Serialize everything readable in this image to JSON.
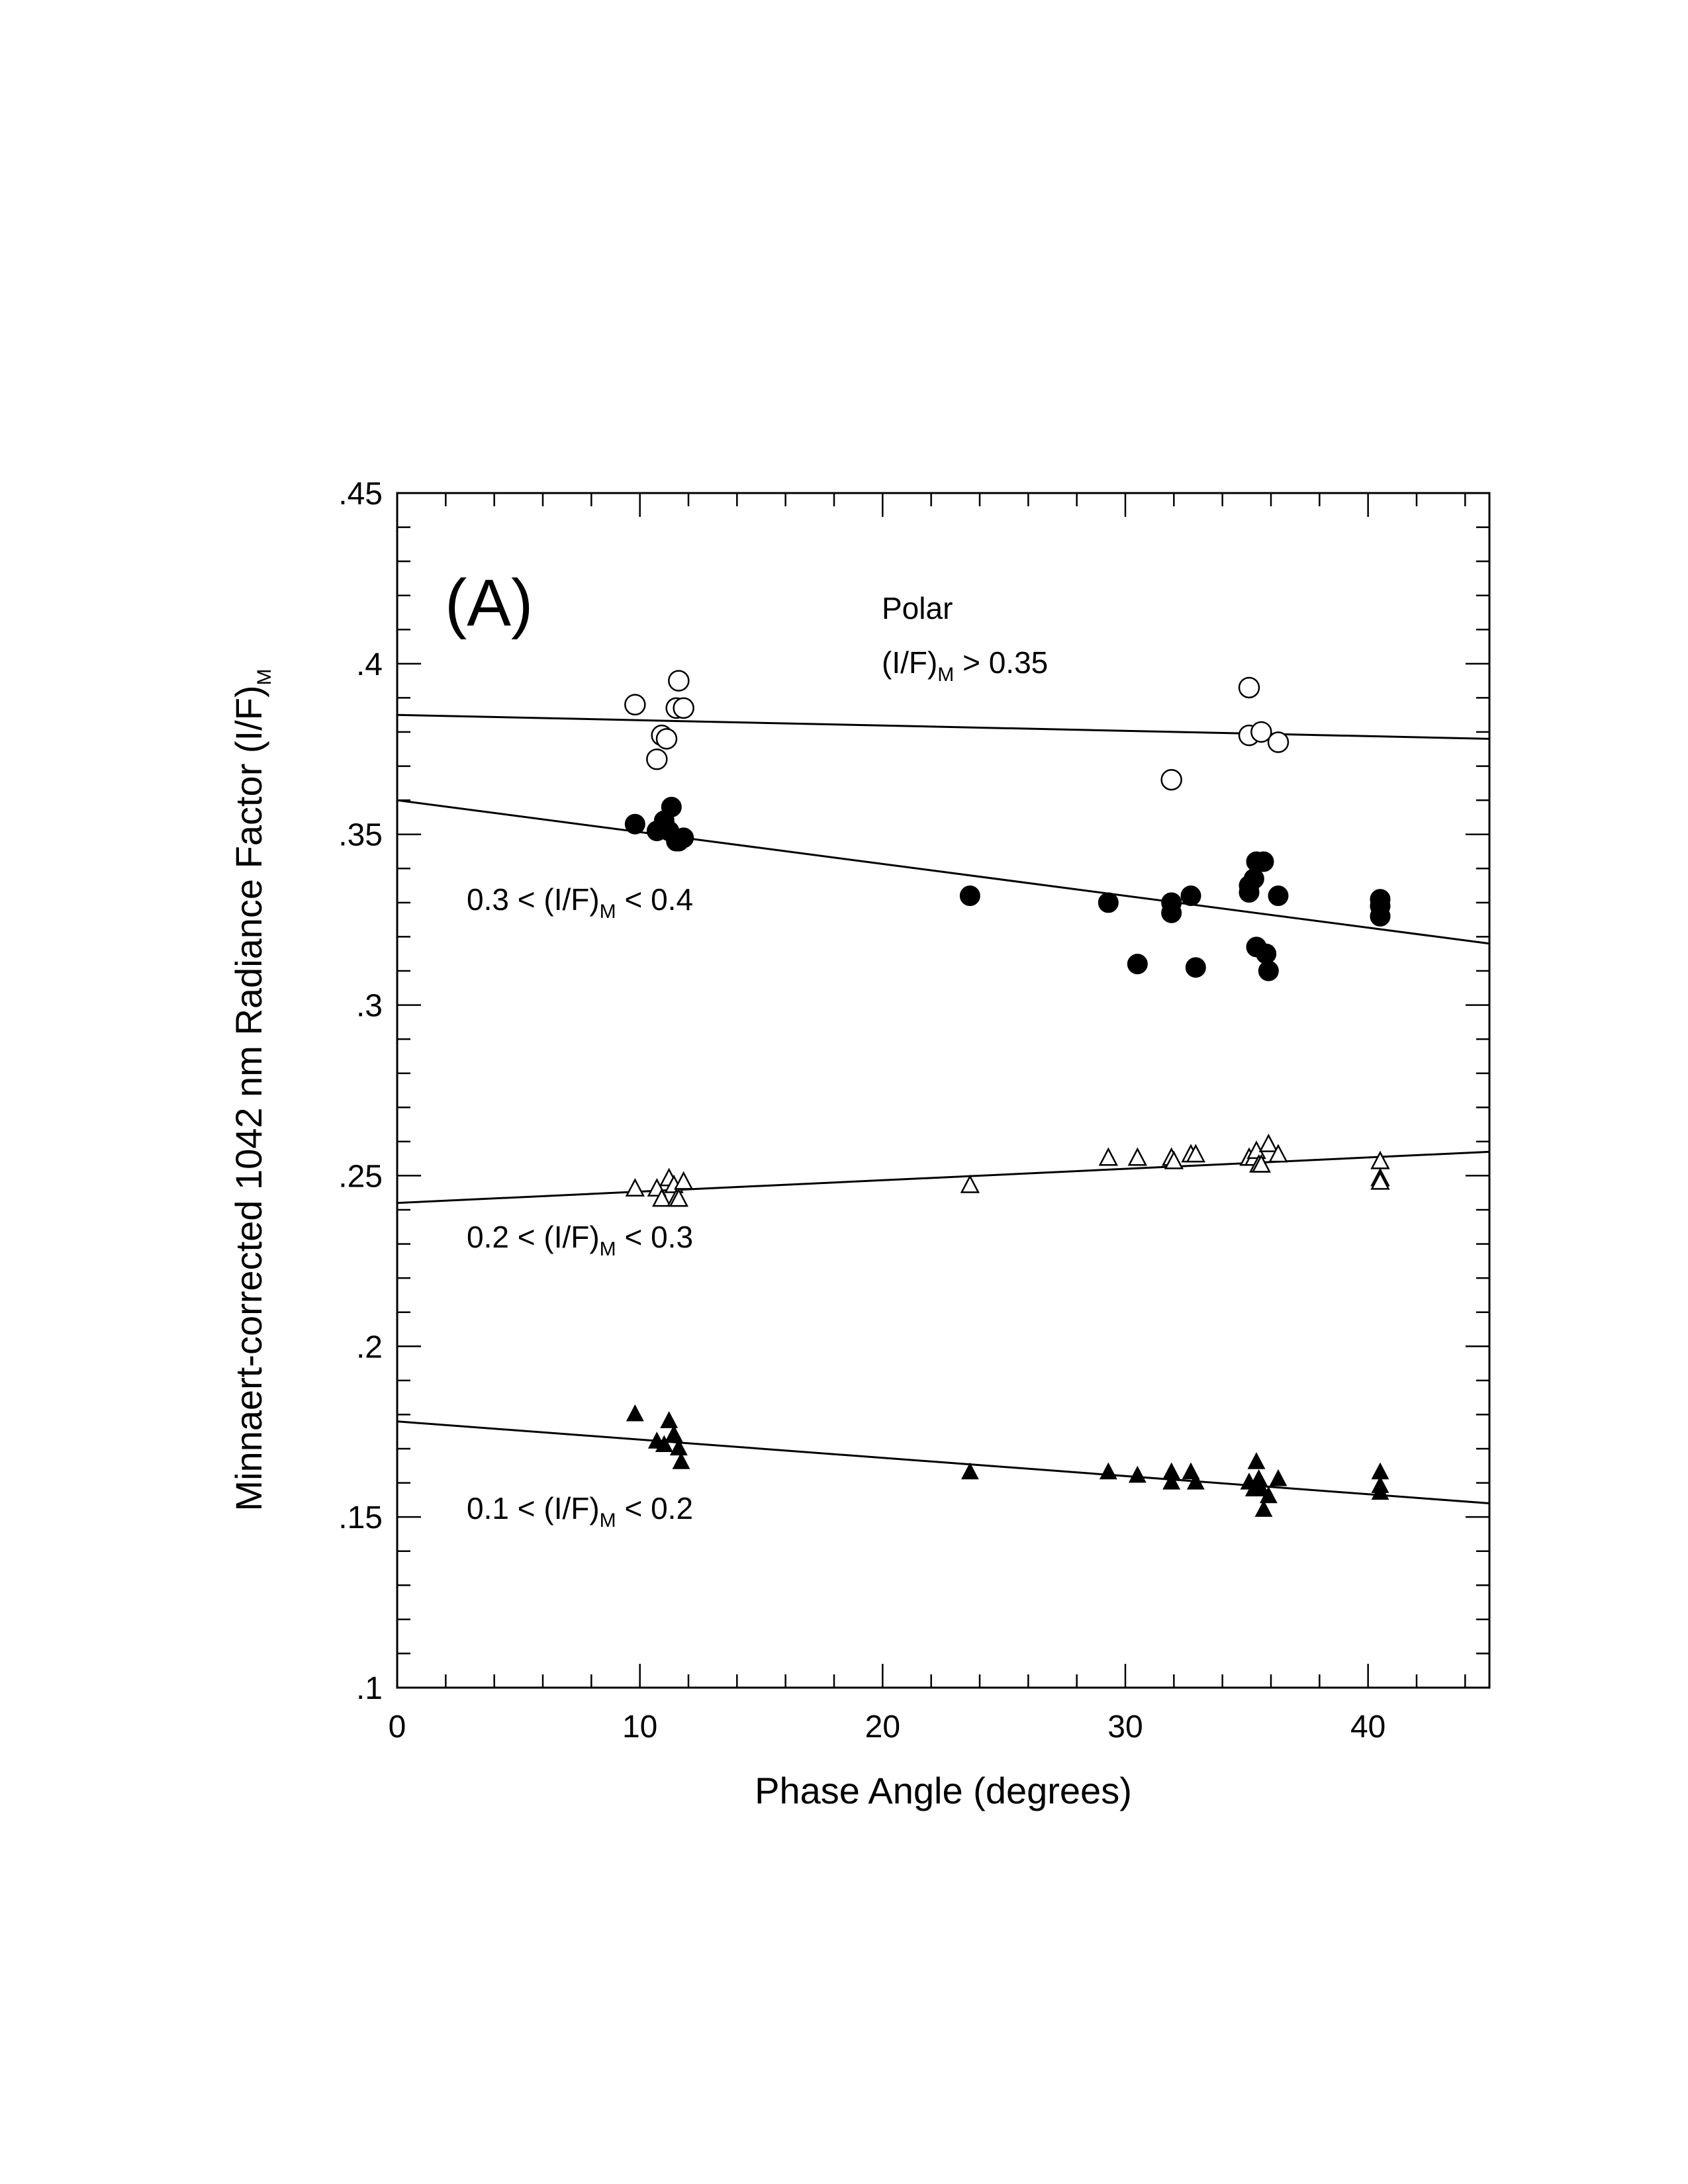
{
  "chart_data": {
    "type": "scatter",
    "panel_label": "(A)",
    "xlabel": "Phase Angle (degrees)",
    "ylabel": {
      "main": "Minnaert-corrected 1042 nm Radiance Factor (I/F)",
      "sub": "M"
    },
    "xlim": [
      0,
      45
    ],
    "ylim": [
      0.1,
      0.45
    ],
    "x_ticks": [
      0,
      10,
      20,
      30,
      40
    ],
    "x_tick_labels": [
      "0",
      "10",
      "20",
      "30",
      "40"
    ],
    "y_ticks": [
      0.1,
      0.15,
      0.2,
      0.25,
      0.3,
      0.35,
      0.4,
      0.45
    ],
    "y_tick_labels": [
      ".1",
      ".15",
      ".2",
      ".25",
      ".3",
      ".35",
      ".4",
      ".45"
    ],
    "grid": false,
    "annotations": [
      {
        "id": "polar",
        "lines": [
          {
            "segments": [
              {
                "text": "Polar"
              }
            ]
          },
          {
            "segments": [
              {
                "text": "(I/F)"
              },
              {
                "text": "M",
                "sub": true
              },
              {
                "text": " > 0.35"
              }
            ]
          }
        ]
      },
      {
        "id": "high",
        "lines": [
          {
            "segments": [
              {
                "text": "0.3 < (I/F)"
              },
              {
                "text": "M",
                "sub": true
              },
              {
                "text": " < 0.4"
              }
            ]
          }
        ]
      },
      {
        "id": "mid",
        "lines": [
          {
            "segments": [
              {
                "text": "0.2 < (I/F)"
              },
              {
                "text": "M",
                "sub": true
              },
              {
                "text": " < 0.3"
              }
            ]
          }
        ]
      },
      {
        "id": "low",
        "lines": [
          {
            "segments": [
              {
                "text": "0.1 < (I/F)"
              },
              {
                "text": "M",
                "sub": true
              },
              {
                "text": " < 0.2"
              }
            ]
          }
        ]
      }
    ],
    "series": [
      {
        "marker": "open-circle",
        "fit": [
          [
            0,
            0.385
          ],
          [
            45,
            0.378
          ]
        ],
        "points": [
          [
            9.8,
            0.388
          ],
          [
            11.6,
            0.395
          ],
          [
            11.5,
            0.387
          ],
          [
            11.8,
            0.387
          ],
          [
            10.9,
            0.379
          ],
          [
            11.1,
            0.378
          ],
          [
            10.7,
            0.372
          ],
          [
            35.1,
            0.393
          ],
          [
            35.1,
            0.379
          ],
          [
            35.6,
            0.38
          ],
          [
            36.3,
            0.377
          ],
          [
            31.9,
            0.366
          ]
        ]
      },
      {
        "marker": "filled-circle",
        "fit": [
          [
            0,
            0.36
          ],
          [
            45,
            0.318
          ]
        ],
        "points": [
          [
            9.8,
            0.353
          ],
          [
            10.7,
            0.351
          ],
          [
            11.0,
            0.354
          ],
          [
            11.3,
            0.358
          ],
          [
            11.2,
            0.351
          ],
          [
            11.5,
            0.348
          ],
          [
            11.8,
            0.349
          ],
          [
            11.6,
            0.348
          ],
          [
            23.6,
            0.332
          ],
          [
            29.3,
            0.33
          ],
          [
            31.9,
            0.33
          ],
          [
            31.9,
            0.327
          ],
          [
            32.7,
            0.332
          ],
          [
            30.5,
            0.312
          ],
          [
            32.9,
            0.311
          ],
          [
            35.1,
            0.335
          ],
          [
            35.1,
            0.333
          ],
          [
            35.3,
            0.337
          ],
          [
            35.4,
            0.342
          ],
          [
            35.7,
            0.342
          ],
          [
            36.3,
            0.332
          ],
          [
            35.4,
            0.317
          ],
          [
            35.8,
            0.315
          ],
          [
            35.9,
            0.31
          ],
          [
            40.5,
            0.331
          ],
          [
            40.5,
            0.329
          ],
          [
            40.5,
            0.326
          ]
        ]
      },
      {
        "marker": "open-triangle",
        "fit": [
          [
            0,
            0.242
          ],
          [
            45,
            0.257
          ]
        ],
        "points": [
          [
            9.8,
            0.246
          ],
          [
            10.7,
            0.246
          ],
          [
            10.9,
            0.243
          ],
          [
            11.2,
            0.249
          ],
          [
            11.4,
            0.247
          ],
          [
            11.5,
            0.243
          ],
          [
            11.6,
            0.243
          ],
          [
            11.8,
            0.248
          ],
          [
            23.6,
            0.247
          ],
          [
            29.3,
            0.255
          ],
          [
            30.5,
            0.255
          ],
          [
            31.9,
            0.255
          ],
          [
            32.0,
            0.254
          ],
          [
            32.7,
            0.256
          ],
          [
            32.9,
            0.256
          ],
          [
            35.1,
            0.255
          ],
          [
            35.3,
            0.255
          ],
          [
            35.4,
            0.257
          ],
          [
            35.5,
            0.253
          ],
          [
            35.6,
            0.253
          ],
          [
            35.9,
            0.259
          ],
          [
            36.3,
            0.256
          ],
          [
            40.5,
            0.254
          ],
          [
            40.5,
            0.249
          ],
          [
            40.5,
            0.248
          ]
        ]
      },
      {
        "marker": "filled-triangle",
        "fit": [
          [
            0,
            0.178
          ],
          [
            45,
            0.154
          ]
        ],
        "points": [
          [
            9.8,
            0.18
          ],
          [
            10.7,
            0.172
          ],
          [
            11.0,
            0.171
          ],
          [
            11.2,
            0.178
          ],
          [
            11.4,
            0.174
          ],
          [
            11.6,
            0.17
          ],
          [
            11.7,
            0.166
          ],
          [
            23.6,
            0.163
          ],
          [
            29.3,
            0.163
          ],
          [
            30.5,
            0.162
          ],
          [
            31.9,
            0.163
          ],
          [
            31.9,
            0.16
          ],
          [
            32.7,
            0.163
          ],
          [
            32.9,
            0.16
          ],
          [
            35.1,
            0.16
          ],
          [
            35.3,
            0.158
          ],
          [
            35.4,
            0.166
          ],
          [
            35.5,
            0.161
          ],
          [
            35.6,
            0.158
          ],
          [
            35.7,
            0.152
          ],
          [
            35.9,
            0.156
          ],
          [
            36.3,
            0.161
          ],
          [
            40.5,
            0.163
          ],
          [
            40.5,
            0.159
          ],
          [
            40.5,
            0.157
          ]
        ]
      }
    ]
  }
}
